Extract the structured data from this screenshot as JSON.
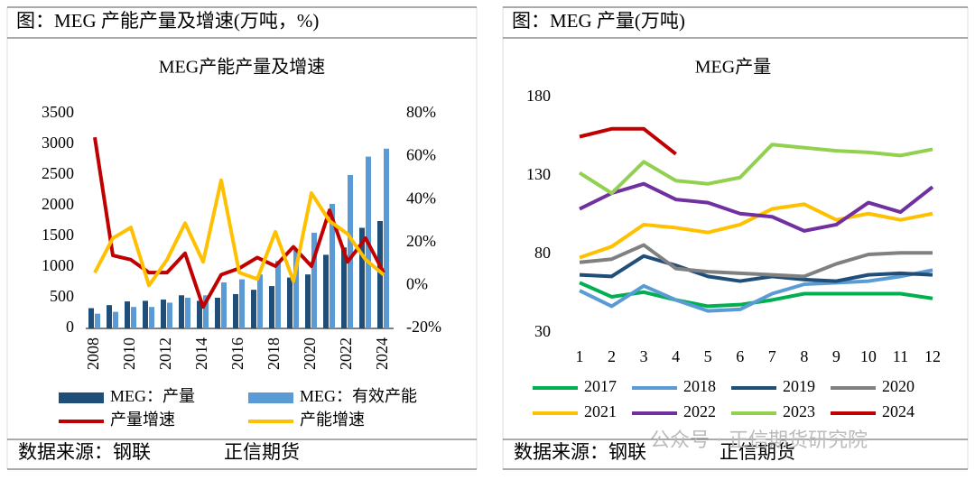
{
  "chart_data": [
    {
      "type": "bar",
      "header": "图：MEG 产能产量及增速(万吨，%)",
      "title": "MEG产能产量及增速",
      "categories": [
        "2008",
        null,
        "2010",
        null,
        "2012",
        null,
        "2014",
        null,
        "2016",
        null,
        "2018",
        null,
        "2020",
        null,
        "2022",
        null,
        "2024"
      ],
      "series": [
        {
          "name": "MEG：产量",
          "type": "bar",
          "color": "#1f4e79",
          "values": [
            330,
            380,
            440,
            450,
            470,
            540,
            450,
            500,
            560,
            630,
            690,
            830,
            880,
            1200,
            1320,
            1640,
            1750
          ]
        },
        {
          "name": "MEG：有效产能",
          "type": "bar",
          "color": "#5b9bd5",
          "values": [
            240,
            270,
            350,
            350,
            420,
            500,
            540,
            750,
            800,
            880,
            1100,
            1280,
            1560,
            2030,
            2500,
            2800,
            2930
          ]
        },
        {
          "name": "产量增速",
          "type": "line",
          "axis": "y2",
          "color": "#c00000",
          "values": [
            69,
            14,
            12,
            6,
            6,
            15,
            -10,
            5,
            8,
            13,
            9,
            18,
            9,
            35,
            11,
            22,
            6
          ]
        },
        {
          "name": "产能增速",
          "type": "line",
          "axis": "y2",
          "color": "#ffc000",
          "values": [
            6,
            22,
            27,
            0,
            12,
            29,
            11,
            49,
            6,
            3,
            25,
            2,
            43,
            30,
            24,
            12,
            5
          ]
        }
      ],
      "ylim": [
        0,
        3500
      ],
      "yticks": [
        0,
        500,
        1000,
        1500,
        2000,
        2500,
        3000,
        3500
      ],
      "y2lim": [
        -20,
        80
      ],
      "y2ticks": [
        {
          "value": -20,
          "label": "-20%"
        },
        {
          "value": 0,
          "label": "0%"
        },
        {
          "value": 20,
          "label": "20%"
        },
        {
          "value": 40,
          "label": "40%"
        },
        {
          "value": 60,
          "label": "60%"
        },
        {
          "value": 80,
          "label": "80%"
        }
      ],
      "source": "数据来源：钢联",
      "org": "正信期货"
    },
    {
      "type": "line",
      "header": "图：MEG 产量(万吨)",
      "title": "MEG产量",
      "x": [
        1,
        2,
        3,
        4,
        5,
        6,
        7,
        8,
        9,
        10,
        11,
        12
      ],
      "series": [
        {
          "name": "2017",
          "color": "#00b050",
          "values": [
            62,
            53,
            56,
            51,
            47,
            48,
            51,
            55,
            55,
            55,
            55,
            52
          ]
        },
        {
          "name": "2018",
          "color": "#5b9bd5",
          "values": [
            57,
            47,
            60,
            51,
            44,
            45,
            55,
            61,
            62,
            63,
            66,
            70
          ]
        },
        {
          "name": "2019",
          "color": "#1f4e79",
          "values": [
            67,
            66,
            79,
            73,
            66,
            63,
            66,
            64,
            63,
            67,
            68,
            67
          ]
        },
        {
          "name": "2020",
          "color": "#808080",
          "values": [
            75,
            77,
            86,
            71,
            69,
            68,
            67,
            66,
            74,
            80,
            81,
            81
          ]
        },
        {
          "name": "2021",
          "color": "#ffc000",
          "values": [
            78,
            85,
            99,
            97,
            94,
            99,
            109,
            112,
            102,
            106,
            102,
            106
          ]
        },
        {
          "name": "2022",
          "color": "#7030a0",
          "values": [
            109,
            119,
            125,
            115,
            113,
            106,
            104,
            95,
            99,
            113,
            107,
            123
          ]
        },
        {
          "name": "2023",
          "color": "#92d050",
          "values": [
            132,
            119,
            139,
            127,
            125,
            129,
            150,
            148,
            146,
            145,
            143,
            147
          ]
        },
        {
          "name": "2024",
          "color": "#c00000",
          "values": [
            155,
            160,
            160,
            144,
            null,
            null,
            null,
            null,
            null,
            null,
            null,
            null
          ]
        }
      ],
      "xlim": [
        1,
        12
      ],
      "xticks": [
        1,
        2,
        3,
        4,
        5,
        6,
        7,
        8,
        9,
        10,
        11,
        12
      ],
      "ylim": [
        30,
        180
      ],
      "yticks": [
        30,
        80,
        130,
        180
      ],
      "source": "数据来源：钢联",
      "org": "正信期货",
      "watermark": "公众号 · 正信期货研究院"
    }
  ]
}
